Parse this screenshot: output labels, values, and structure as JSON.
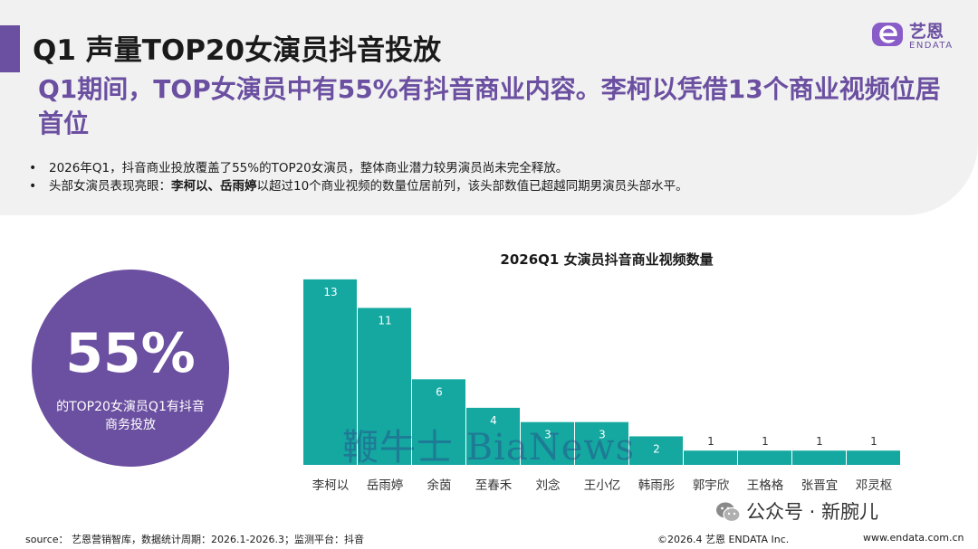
{
  "header": {
    "title": "Q1 声量TOP20女演员抖音投放",
    "headline": "Q1期间，TOP女演员中有55%有抖音商业内容。李柯以凭借13个商业视频位居首位"
  },
  "logo": {
    "name_cn": "艺恩",
    "name_en": "ENDATA"
  },
  "bullets": [
    {
      "text": "2026年Q1，抖音商业投放覆盖了55%的TOP20女演员，整体商业潜力较男演员尚未完全释放。"
    },
    {
      "prefix": "头部女演员表现亮眼：",
      "bold": "李柯以、岳雨婷",
      "suffix": "以超过10个商业视频的数量位居前列，该头部数值已超越同期男演员头部水平。"
    }
  ],
  "stat": {
    "value": "55%",
    "caption": "的TOP20女演员Q1有抖音商务投放"
  },
  "chart_data": {
    "type": "bar",
    "title": "2026Q1 女演员抖音商业视频数量",
    "categories": [
      "李柯以",
      "岳雨婷",
      "余茵",
      "至春禾",
      "刘念",
      "王小亿",
      "韩雨彤",
      "郭宇欣",
      "王格格",
      "张晋宜",
      "邓灵枢"
    ],
    "values": [
      13,
      11,
      6,
      4,
      3,
      3,
      2,
      1,
      1,
      1,
      1
    ],
    "ylim": [
      0,
      13.5
    ],
    "xlabel": "",
    "ylabel": "",
    "grid": false,
    "bar_color": "#14a8a0"
  },
  "watermark": "鞭牛士 BiaNews",
  "wechat": {
    "icon": "wechat-icon",
    "text": "公众号 · 新腕儿"
  },
  "footer": {
    "source": "source： 艺恩营销智库，数据统计周期：2026.1-2026.3；监测平台：抖音",
    "copyright": "©2026.4 艺恩 ENDATA Inc.",
    "website": "www.endata.com.cn"
  },
  "colors": {
    "accent": "#6b4fa0",
    "bar": "#14a8a0",
    "panel": "#f1f1f2"
  }
}
